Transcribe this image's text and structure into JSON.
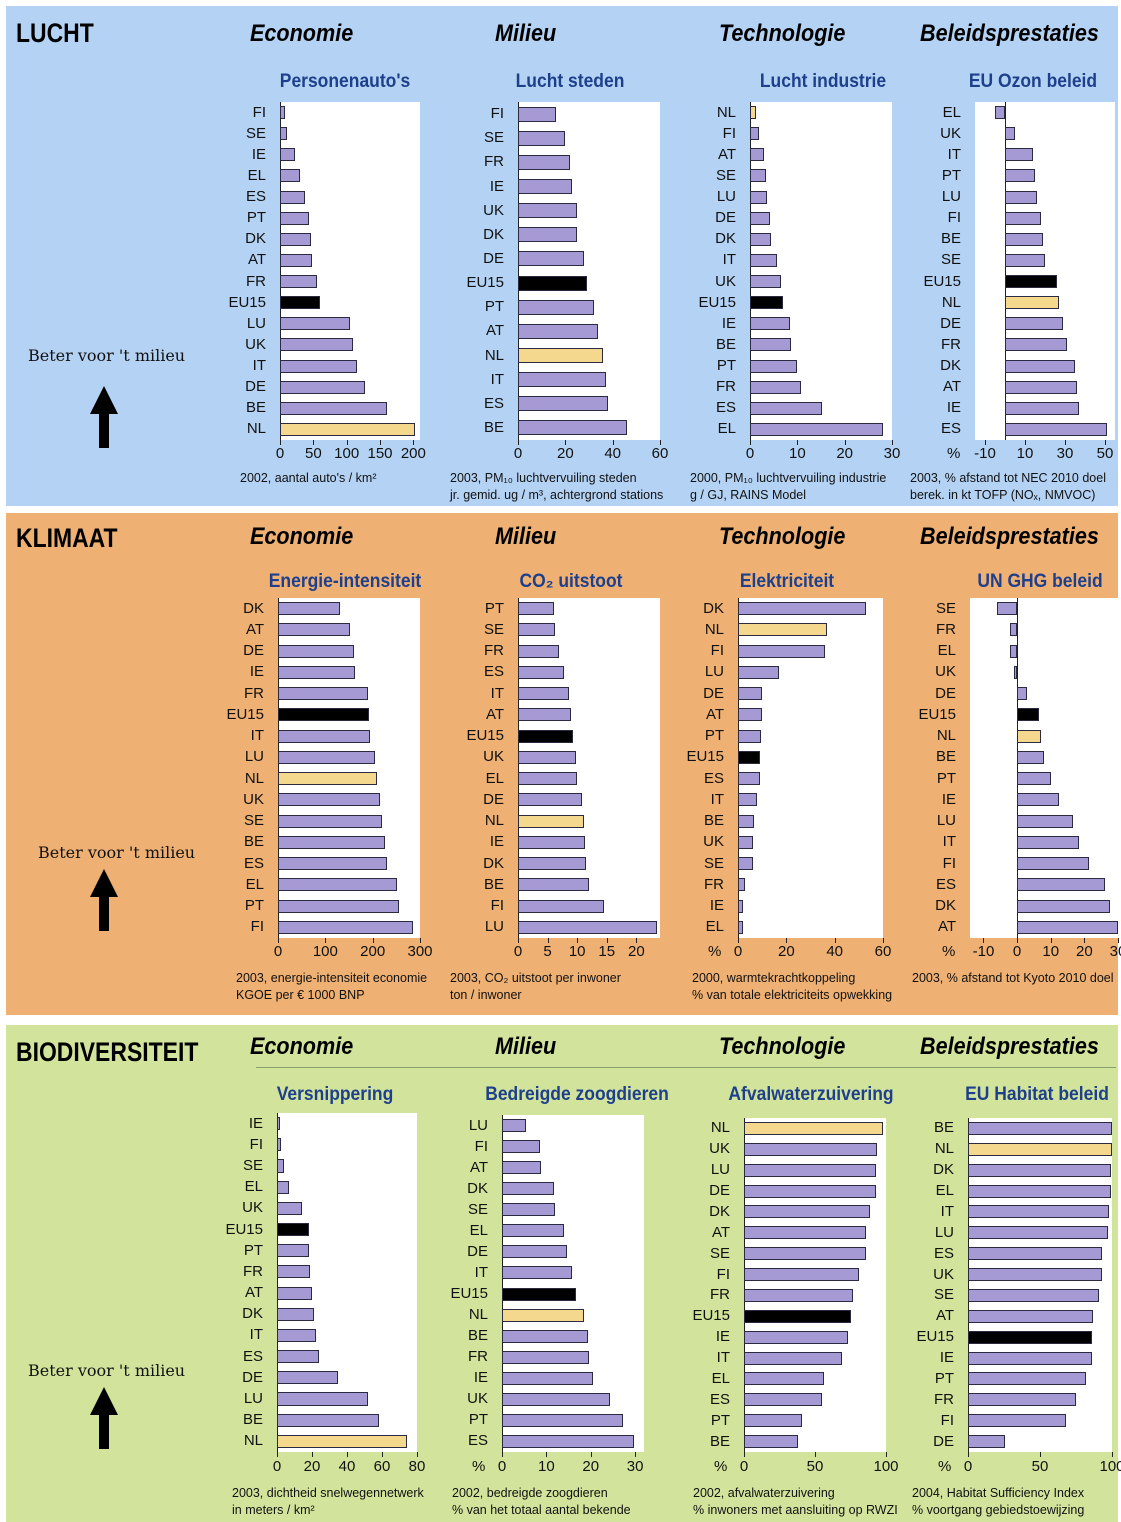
{
  "colors": {
    "lucht_bg": "#b4d3f4",
    "klimaat_bg": "#eeb073",
    "biodiv_bg": "#d2e49c",
    "bar": "#a59ad4",
    "nl_bar": "#f3d88e",
    "eu_bar": "#000000",
    "chart_title": "#1e3f8c"
  },
  "icons": {
    "arrow": "up-arrow-icon"
  },
  "sections": [
    {
      "title": "LUCHT",
      "themes": [
        "Economie",
        "Milieu",
        "Technologie",
        "Beleidsprestaties"
      ],
      "better_label": "Beter voor 't milieu",
      "charts": [
        {
          "title": "Personenauto's",
          "type": "bar",
          "categories": [
            "FI",
            "SE",
            "IE",
            "EL",
            "ES",
            "PT",
            "DK",
            "AT",
            "FR",
            "EU15",
            "LU",
            "UK",
            "IT",
            "DE",
            "BE",
            "NL"
          ],
          "values": [
            8,
            10,
            22,
            30,
            38,
            44,
            46,
            48,
            55,
            60,
            105,
            110,
            115,
            128,
            160,
            202
          ],
          "xlim": [
            0,
            210
          ],
          "ticks": [
            0,
            50,
            100,
            150,
            200
          ],
          "pct_label": "",
          "note": [
            "2002, aantal auto's / km²"
          ]
        },
        {
          "title": "Lucht steden",
          "type": "bar",
          "categories": [
            "FI",
            "SE",
            "FR",
            "IE",
            "UK",
            "DK",
            "DE",
            "EU15",
            "PT",
            "AT",
            "NL",
            "IT",
            "ES",
            "BE"
          ],
          "values": [
            16,
            20,
            22,
            23,
            25,
            25,
            28,
            29,
            32,
            34,
            36,
            37,
            38,
            46
          ],
          "xlim": [
            0,
            60
          ],
          "ticks": [
            0,
            20,
            40,
            60
          ],
          "pct_label": "",
          "note": [
            "2003, PM₁₀ luchtvervuiling steden",
            "jr. gemid. ug / m³, achtergrond stations"
          ]
        },
        {
          "title": "Lucht industrie",
          "type": "bar",
          "categories": [
            "NL",
            "FI",
            "AT",
            "SE",
            "LU",
            "DE",
            "DK",
            "IT",
            "UK",
            "EU15",
            "IE",
            "BE",
            "PT",
            "FR",
            "ES",
            "EL"
          ],
          "values": [
            1.2,
            2,
            3,
            3.3,
            3.6,
            4.3,
            4.4,
            5.7,
            6.5,
            7,
            8.4,
            8.6,
            9.9,
            10.8,
            15.2,
            28.2
          ],
          "xlim": [
            0,
            30
          ],
          "ticks": [
            0,
            10,
            20,
            30
          ],
          "pct_label": "",
          "note": [
            "2000, PM₁₀ luchtvervuiling industrie",
            "g / GJ, RAINS Model"
          ]
        },
        {
          "title": "EU Ozon beleid",
          "type": "bar",
          "categories": [
            "EL",
            "UK",
            "IT",
            "PT",
            "LU",
            "FI",
            "BE",
            "SE",
            "EU15",
            "NL",
            "DE",
            "FR",
            "DK",
            "AT",
            "IE",
            "ES"
          ],
          "values": [
            -5,
            5,
            14,
            15,
            16,
            18,
            19,
            20,
            26,
            27,
            29,
            31,
            35,
            36,
            37,
            51
          ],
          "xlim": [
            -15,
            55
          ],
          "ticks": [
            -10,
            10,
            30,
            50
          ],
          "pct_label": "%",
          "note": [
            "2003, % afstand tot NEC 2010 doel",
            "berek. in kt TOFP (NOₓ, NMVOC)"
          ]
        }
      ]
    },
    {
      "title": "KLIMAAT",
      "themes": [
        "Economie",
        "Milieu",
        "Technologie",
        "Beleidsprestaties"
      ],
      "better_label": "Beter voor 't milieu",
      "charts": [
        {
          "title": "Energie-intensiteit",
          "type": "bar",
          "categories": [
            "DK",
            "AT",
            "DE",
            "IE",
            "FR",
            "EU15",
            "IT",
            "LU",
            "NL",
            "UK",
            "SE",
            "BE",
            "ES",
            "EL",
            "PT",
            "FI"
          ],
          "values": [
            130,
            152,
            160,
            163,
            190,
            193,
            195,
            205,
            210,
            215,
            220,
            225,
            230,
            252,
            255,
            285
          ],
          "xlim": [
            0,
            300
          ],
          "ticks": [
            0,
            100,
            200,
            300
          ],
          "pct_label": "",
          "note": [
            "2003, energie-intensiteit economie",
            "KGOE per € 1000 BNP"
          ]
        },
        {
          "title": "CO₂ uitstoot",
          "type": "bar",
          "categories": [
            "PT",
            "SE",
            "FR",
            "ES",
            "IT",
            "AT",
            "EU15",
            "UK",
            "EL",
            "DE",
            "NL",
            "IE",
            "DK",
            "BE",
            "FI",
            "LU"
          ],
          "values": [
            6,
            6.2,
            7,
            7.8,
            8.6,
            9,
            9.3,
            9.8,
            10,
            10.8,
            11.1,
            11.3,
            11.5,
            12,
            14.5,
            23.5
          ],
          "xlim": [
            0,
            24
          ],
          "ticks": [
            0,
            5,
            10,
            15,
            20
          ],
          "pct_label": "",
          "note": [
            "2003, CO₂ uitstoot per inwoner",
            "ton / inwoner"
          ]
        },
        {
          "title": "Elektriciteit",
          "type": "bar",
          "categories": [
            "DK",
            "NL",
            "FI",
            "LU",
            "DE",
            "AT",
            "PT",
            "EU15",
            "ES",
            "IT",
            "BE",
            "UK",
            "SE",
            "FR",
            "IE",
            "EL"
          ],
          "values": [
            53,
            37,
            36,
            17,
            10,
            10,
            9.5,
            9,
            9,
            8,
            6.5,
            6,
            6,
            3,
            2,
            2
          ],
          "xlim": [
            0,
            60
          ],
          "ticks": [
            0,
            20,
            40,
            60
          ],
          "pct_label": "%",
          "note": [
            "2000, warmtekrachtkoppeling",
            "% van totale elektriciteits opwekking"
          ]
        },
        {
          "title": "UN GHG beleid",
          "type": "bar",
          "categories": [
            "SE",
            "FR",
            "EL",
            "UK",
            "DE",
            "EU15",
            "NL",
            "BE",
            "PT",
            "IE",
            "LU",
            "IT",
            "FI",
            "ES",
            "DK",
            "AT"
          ],
          "values": [
            -6,
            -2,
            -2,
            -1,
            3,
            6.5,
            7,
            8,
            10,
            12.5,
            16.5,
            18.5,
            21.5,
            26,
            27.5,
            30
          ],
          "xlim": [
            -14,
            30
          ],
          "ticks": [
            -10,
            0,
            10,
            20,
            30
          ],
          "pct_label": "%",
          "note": [
            "2003, % afstand tot Kyoto 2010 doel"
          ]
        }
      ]
    },
    {
      "title": "BIODIVERSITEIT",
      "themes": [
        "Economie",
        "Milieu",
        "Technologie",
        "Beleidsprestaties"
      ],
      "better_label": "Beter voor 't milieu",
      "charts": [
        {
          "title": "Versnippering",
          "type": "bar",
          "categories": [
            "IE",
            "FI",
            "SE",
            "EL",
            "UK",
            "EU15",
            "PT",
            "FR",
            "AT",
            "DK",
            "IT",
            "ES",
            "DE",
            "LU",
            "BE",
            "NL"
          ],
          "values": [
            1.5,
            2,
            4,
            7,
            14,
            18,
            18.5,
            19,
            20,
            21,
            22,
            24,
            35,
            52,
            58,
            74
          ],
          "xlim": [
            0,
            80
          ],
          "ticks": [
            0,
            20,
            40,
            60,
            80
          ],
          "pct_label": "",
          "note": [
            "2003, dichtheid snelwegennetwerk",
            "in meters / km²"
          ]
        },
        {
          "title": "Bedreigde zoogdieren",
          "type": "bar",
          "categories": [
            "LU",
            "FI",
            "AT",
            "DK",
            "SE",
            "EL",
            "DE",
            "IT",
            "EU15",
            "NL",
            "BE",
            "FR",
            "IE",
            "UK",
            "PT",
            "ES"
          ],
          "values": [
            5.5,
            8.5,
            8.7,
            11.7,
            12,
            14,
            14.7,
            15.7,
            16.7,
            18.5,
            19.4,
            19.7,
            20.5,
            24.3,
            27.2,
            29.8
          ],
          "xlim": [
            0,
            32
          ],
          "ticks": [
            0,
            10,
            20,
            30
          ],
          "pct_label": "%",
          "note": [
            "2002, bedreigde zoogdieren",
            "% van het totaal aantal bekende"
          ]
        },
        {
          "title": "Afvalwaterzuivering",
          "type": "bar",
          "categories": [
            "NL",
            "UK",
            "LU",
            "DE",
            "DK",
            "AT",
            "SE",
            "FI",
            "FR",
            "EU15",
            "IE",
            "IT",
            "EL",
            "ES",
            "PT",
            "BE"
          ],
          "values": [
            98,
            94,
            93,
            93,
            89,
            86,
            86,
            81,
            77,
            75,
            73,
            69,
            56,
            55,
            41,
            38
          ],
          "xlim": [
            0,
            100
          ],
          "ticks": [
            0,
            50,
            100
          ],
          "pct_label": "%",
          "note": [
            "2002, afvalwaterzuivering",
            "% inwoners met aansluiting op RWZI"
          ]
        },
        {
          "title": "EU Habitat beleid",
          "type": "bar",
          "categories": [
            "BE",
            "NL",
            "DK",
            "EL",
            "IT",
            "LU",
            "ES",
            "UK",
            "SE",
            "AT",
            "EU15",
            "IE",
            "PT",
            "FR",
            "FI",
            "DE"
          ],
          "values": [
            100,
            100,
            99,
            99,
            98,
            97,
            93,
            93,
            91,
            87,
            86,
            86,
            82,
            75,
            68,
            26
          ],
          "xlim": [
            0,
            100
          ],
          "ticks": [
            0,
            50,
            100
          ],
          "pct_label": "%",
          "note": [
            "2004, Habitat Sufficiency Index",
            "% voortgang gebiedstoewijzing"
          ]
        }
      ]
    }
  ]
}
